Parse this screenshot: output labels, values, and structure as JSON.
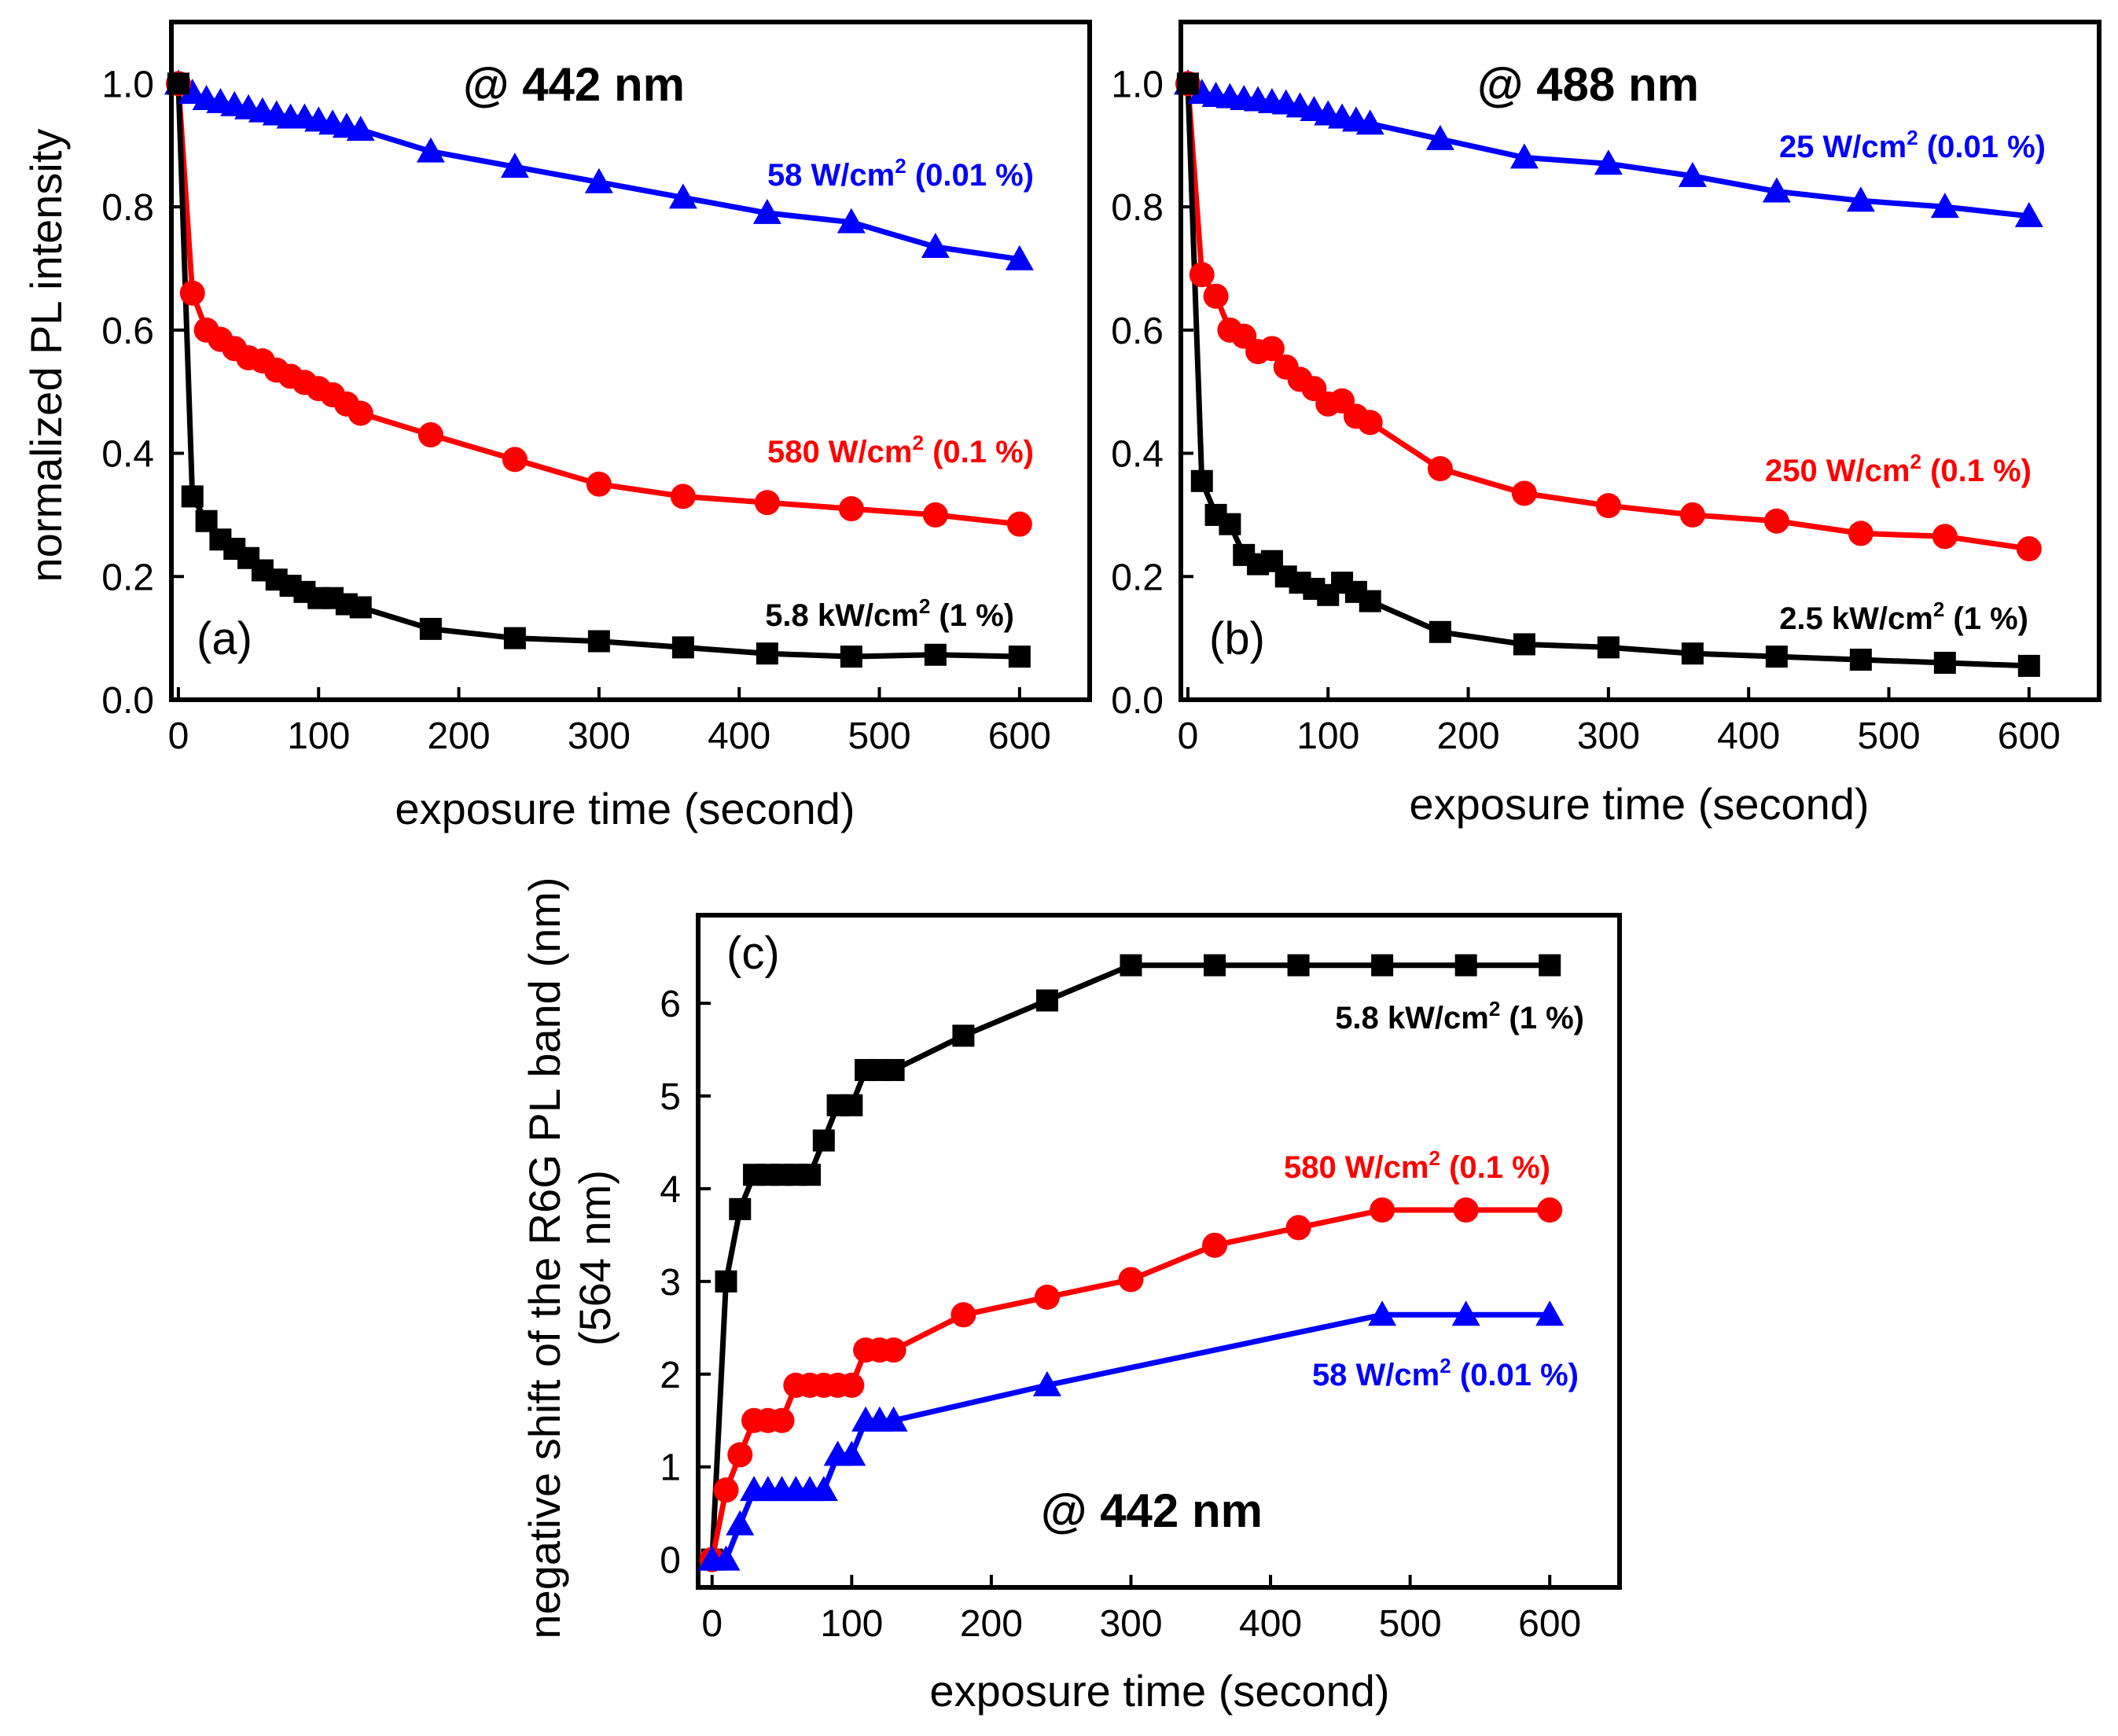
{
  "chart_data": [
    {
      "id": "a",
      "type": "line",
      "panel_label": "(a)",
      "title": "@ 442 nm",
      "xlabel": "exposure time (second)",
      "ylabel": "normalized PL intensity",
      "xlim": [
        -5,
        650
      ],
      "ylim": [
        0,
        1.1
      ],
      "xticks": [
        0,
        100,
        200,
        300,
        400,
        500,
        600
      ],
      "yticks": [
        0.0,
        0.2,
        0.4,
        0.6,
        0.8,
        1.0
      ],
      "ytick_labels": [
        "0.0",
        "0.2",
        "0.4",
        "0.6",
        "0.8",
        "1.0"
      ],
      "series": [
        {
          "name": "58 W/cm2 (0.01 %)",
          "label_main": "58 W/cm",
          "label_sup": "2",
          "label_rest": " (0.01 %)",
          "color": "#0000ff",
          "marker": "triangle",
          "x": [
            0,
            10,
            20,
            30,
            40,
            50,
            60,
            70,
            80,
            90,
            100,
            110,
            120,
            130,
            180,
            240,
            300,
            360,
            420,
            480,
            540,
            600
          ],
          "y": [
            1.0,
            0.985,
            0.975,
            0.97,
            0.965,
            0.96,
            0.955,
            0.95,
            0.945,
            0.945,
            0.94,
            0.935,
            0.93,
            0.925,
            0.89,
            0.865,
            0.84,
            0.815,
            0.79,
            0.775,
            0.735,
            0.715
          ]
        },
        {
          "name": "580 W/cm2 (0.1 %)",
          "label_main": "580 W/cm",
          "label_sup": "2",
          "label_rest": " (0.1 %)",
          "color": "#ff0000",
          "marker": "circle",
          "x": [
            0,
            10,
            20,
            30,
            40,
            50,
            60,
            70,
            80,
            90,
            100,
            110,
            120,
            130,
            180,
            240,
            300,
            360,
            420,
            480,
            540,
            600
          ],
          "y": [
            1.0,
            0.66,
            0.6,
            0.585,
            0.57,
            0.555,
            0.55,
            0.535,
            0.525,
            0.515,
            0.505,
            0.495,
            0.48,
            0.465,
            0.43,
            0.39,
            0.35,
            0.33,
            0.32,
            0.31,
            0.3,
            0.285
          ]
        },
        {
          "name": "5.8 kW/cm2 (1 %)",
          "label_main": "5.8 kW/cm",
          "label_sup": "2",
          "label_rest": " (1 %)",
          "color": "#000000",
          "marker": "square",
          "x": [
            0,
            10,
            20,
            30,
            40,
            50,
            60,
            70,
            80,
            90,
            100,
            110,
            120,
            130,
            180,
            240,
            300,
            360,
            420,
            480,
            540,
            600
          ],
          "y": [
            1.0,
            0.33,
            0.29,
            0.26,
            0.245,
            0.23,
            0.21,
            0.195,
            0.185,
            0.175,
            0.165,
            0.165,
            0.155,
            0.15,
            0.115,
            0.1,
            0.095,
            0.085,
            0.075,
            0.07,
            0.073,
            0.07
          ]
        }
      ]
    },
    {
      "id": "b",
      "type": "line",
      "panel_label": "(b)",
      "title": "@ 488 nm",
      "xlabel": "exposure time (second)",
      "ylabel": "",
      "xlim": [
        -5,
        650
      ],
      "ylim": [
        0,
        1.1
      ],
      "xticks": [
        0,
        100,
        200,
        300,
        400,
        500,
        600
      ],
      "yticks": [
        0.0,
        0.2,
        0.4,
        0.6,
        0.8,
        1.0
      ],
      "ytick_labels": [
        "0.0",
        "0.2",
        "0.4",
        "0.6",
        "0.8",
        "1.0"
      ],
      "series": [
        {
          "name": "25 W/cm2 (0.01 %)",
          "label_main": "25 W/cm",
          "label_sup": "2",
          "label_rest": " (0.01 %)",
          "color": "#0000ff",
          "marker": "triangle",
          "x": [
            0,
            10,
            20,
            30,
            40,
            50,
            60,
            70,
            80,
            90,
            100,
            110,
            120,
            130,
            180,
            240,
            300,
            360,
            420,
            480,
            540,
            600
          ],
          "y": [
            1.0,
            0.985,
            0.98,
            0.978,
            0.975,
            0.973,
            0.97,
            0.968,
            0.963,
            0.957,
            0.95,
            0.945,
            0.94,
            0.935,
            0.91,
            0.88,
            0.87,
            0.85,
            0.825,
            0.81,
            0.8,
            0.785
          ]
        },
        {
          "name": "250 W/cm2 (0.1 %)",
          "label_main": "250 W/cm",
          "label_sup": "2",
          "label_rest": " (0.1 %)",
          "color": "#ff0000",
          "marker": "circle",
          "x": [
            0,
            10,
            20,
            30,
            40,
            50,
            60,
            70,
            80,
            90,
            100,
            110,
            120,
            130,
            180,
            240,
            300,
            360,
            420,
            480,
            540,
            600
          ],
          "y": [
            1.0,
            0.69,
            0.655,
            0.6,
            0.59,
            0.565,
            0.57,
            0.54,
            0.52,
            0.505,
            0.48,
            0.485,
            0.46,
            0.45,
            0.375,
            0.335,
            0.315,
            0.3,
            0.29,
            0.27,
            0.265,
            0.245
          ]
        },
        {
          "name": "2.5 kW/cm2 (1 %)",
          "label_main": "2.5 kW/cm",
          "label_sup": "2",
          "label_rest": " (1 %)",
          "color": "#000000",
          "marker": "square",
          "x": [
            0,
            10,
            20,
            30,
            40,
            50,
            60,
            70,
            80,
            90,
            100,
            110,
            120,
            130,
            180,
            240,
            300,
            360,
            420,
            480,
            540,
            600
          ],
          "y": [
            1.0,
            0.355,
            0.3,
            0.285,
            0.235,
            0.22,
            0.225,
            0.2,
            0.19,
            0.18,
            0.17,
            0.19,
            0.175,
            0.16,
            0.11,
            0.09,
            0.085,
            0.075,
            0.07,
            0.065,
            0.06,
            0.055
          ]
        }
      ]
    },
    {
      "id": "c",
      "type": "line",
      "panel_label": "(c)",
      "title": "@ 442 nm",
      "xlabel": "exposure time (second)",
      "ylabel": "negative shift of the R6G PL band (nm)",
      "ylabel2": "(564 nm)",
      "xlim": [
        -10,
        650
      ],
      "ylim": [
        -0.3,
        6.95
      ],
      "xticks": [
        0,
        100,
        200,
        300,
        400,
        500,
        600
      ],
      "yticks": [
        0,
        1,
        2,
        3,
        4,
        5,
        6
      ],
      "ytick_labels": [
        "0",
        "1",
        "2",
        "3",
        "4",
        "5",
        "6"
      ],
      "series": [
        {
          "name": "5.8 kW/cm2 (1 %)",
          "label_main": "5.8 kW/cm",
          "label_sup": "2",
          "label_rest": " (1 %)",
          "color": "#000000",
          "marker": "square",
          "x": [
            0,
            10,
            20,
            30,
            40,
            50,
            60,
            70,
            80,
            90,
            100,
            110,
            120,
            130,
            180,
            240,
            300,
            360,
            420,
            480,
            540,
            600
          ],
          "y": [
            0,
            3.0,
            3.78,
            4.15,
            4.15,
            4.15,
            4.15,
            4.15,
            4.52,
            4.9,
            4.9,
            5.28,
            5.28,
            5.28,
            5.65,
            6.03,
            6.41,
            6.41,
            6.41,
            6.41,
            6.41,
            6.41
          ]
        },
        {
          "name": "580 W/cm2 (0.1 %)",
          "label_main": "580 W/cm",
          "label_sup": "2",
          "label_rest": " (0.1 %)",
          "color": "#ff0000",
          "marker": "circle",
          "x": [
            0,
            10,
            20,
            30,
            40,
            50,
            60,
            70,
            80,
            90,
            100,
            110,
            120,
            130,
            180,
            240,
            300,
            360,
            420,
            480,
            540,
            600
          ],
          "y": [
            0,
            0.75,
            1.13,
            1.5,
            1.5,
            1.5,
            1.88,
            1.88,
            1.88,
            1.88,
            1.88,
            2.26,
            2.26,
            2.26,
            2.64,
            2.83,
            3.02,
            3.39,
            3.58,
            3.77,
            3.77,
            3.77
          ]
        },
        {
          "name": "58 W/cm2 (0.01 %)",
          "label_main": "58 W/cm",
          "label_sup": "2",
          "label_rest": " (0.01 %)",
          "color": "#0000ff",
          "marker": "triangle",
          "x": [
            0,
            10,
            20,
            30,
            40,
            50,
            60,
            70,
            80,
            90,
            100,
            110,
            120,
            130,
            240,
            480,
            540,
            600
          ],
          "y": [
            0,
            0,
            0.38,
            0.75,
            0.75,
            0.75,
            0.75,
            0.75,
            0.75,
            1.13,
            1.13,
            1.5,
            1.5,
            1.5,
            1.88,
            2.64,
            2.64,
            2.64
          ]
        }
      ]
    }
  ]
}
